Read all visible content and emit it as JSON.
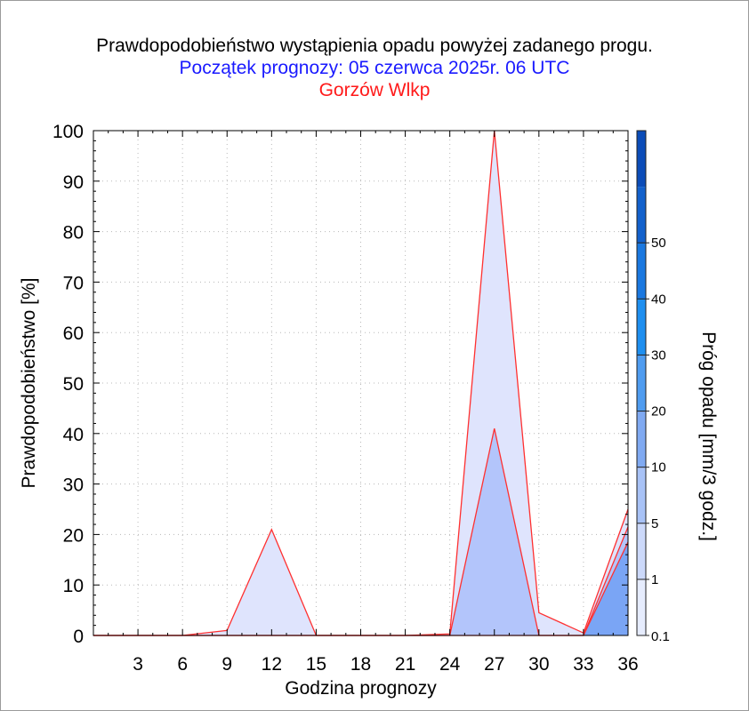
{
  "chart_data": {
    "type": "area",
    "title": "Prawdopodobieństwo wystąpienia opadu powyżej zadanego progu.",
    "subtitle": "Początek prognozy: 05 czerwca 2025r. 06 UTC",
    "location": "Gorzów Wlkp",
    "xlabel": "Godzina prognozy",
    "ylabel": "Prawdopodobieństwo [%]",
    "colorbar_label": "Próg opadu [mm/3 godz.]",
    "xlim": [
      0,
      36
    ],
    "ylim": [
      0,
      100
    ],
    "x_ticks": [
      "3",
      "6",
      "9",
      "12",
      "15",
      "18",
      "21",
      "24",
      "27",
      "30",
      "33",
      "36"
    ],
    "y_ticks": [
      "0",
      "10",
      "20",
      "30",
      "40",
      "50",
      "60",
      "70",
      "80",
      "90",
      "100"
    ],
    "grid": true,
    "x": [
      0,
      3,
      6,
      9,
      12,
      15,
      18,
      21,
      24,
      27,
      30,
      33,
      36
    ],
    "series": [
      {
        "threshold": "0.1",
        "color": "#dfe4fd",
        "values": [
          0,
          0,
          0,
          1,
          21,
          0,
          0,
          0,
          0.3,
          100,
          4.5,
          0.5,
          25
        ]
      },
      {
        "threshold": "1",
        "color": "#b3c5fb",
        "values": [
          0,
          0,
          0,
          0,
          0,
          0,
          0,
          0,
          0,
          41,
          0,
          0,
          21.5
        ]
      },
      {
        "threshold": "5",
        "color": "#7aa5f5",
        "values": [
          0,
          0,
          0,
          0,
          0,
          0,
          0,
          0,
          0,
          0,
          0,
          0,
          18.5
        ]
      }
    ],
    "line_color": "#ff3030",
    "colorbar": {
      "labels": [
        "0.1",
        "1",
        "5",
        "10",
        "20",
        "30",
        "40",
        "50"
      ],
      "colors": [
        "#e6ecfd",
        "#ccd9fa",
        "#a8c2f6",
        "#80aaf2",
        "#4f9cf0",
        "#1e8ff0",
        "#1a78e0",
        "#1261cc",
        "#0b4cb8"
      ]
    }
  }
}
